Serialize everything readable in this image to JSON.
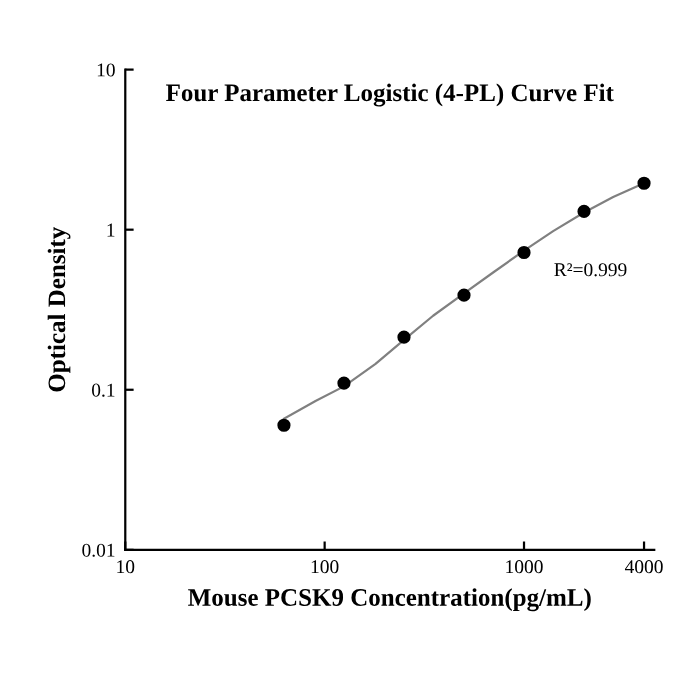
{
  "chart_data": {
    "type": "scatter",
    "title": "Four Parameter Logistic (4-PL) Curve Fit",
    "xlabel": "Mouse PCSK9 Concentration(pg/mL)",
    "ylabel": "Optical Density",
    "log": "xy",
    "xlim": [
      10,
      4500
    ],
    "ylim": [
      0.01,
      10
    ],
    "xticks": [
      10,
      100,
      1000,
      4000
    ],
    "yticks": [
      0.01,
      0.1,
      1,
      10
    ],
    "grid": false,
    "legend": false,
    "annotations": [
      "R²=0.999"
    ],
    "series": [
      {
        "color": "#000000",
        "marker": "circle",
        "x": [
          62.5,
          125,
          250,
          500,
          1000,
          2000,
          4000
        ],
        "values": [
          0.06,
          0.11,
          0.213,
          0.39,
          0.72,
          1.3,
          1.95
        ]
      },
      {
        "type": "line",
        "color": "#808080",
        "line_style": "solid",
        "x": [
          62.5,
          90,
          125,
          180,
          250,
          350,
          500,
          700,
          1000,
          1400,
          2000,
          2800,
          4000
        ],
        "values": [
          0.066,
          0.085,
          0.105,
          0.145,
          0.205,
          0.29,
          0.4,
          0.54,
          0.74,
          0.98,
          1.28,
          1.6,
          1.95
        ]
      }
    ]
  }
}
